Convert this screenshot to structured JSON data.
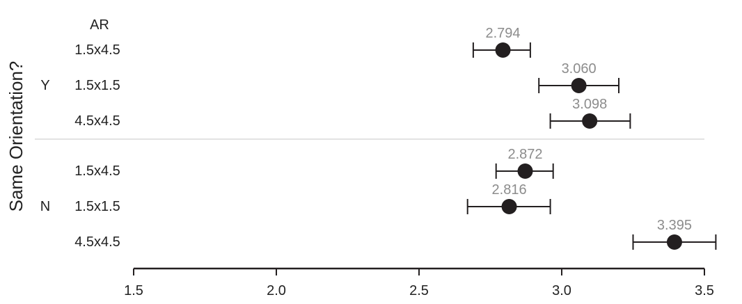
{
  "chart_data": {
    "type": "forest",
    "ylabel": "Same Orientation?",
    "row_header": "AR",
    "xlim": [
      1.5,
      3.5
    ],
    "xticks": [
      "1.5",
      "2.0",
      "2.5",
      "3.0",
      "3.5"
    ],
    "groups": [
      {
        "label": "Y",
        "rows": [
          {
            "ar": "1.5x4.5",
            "value": 2.794,
            "value_label": "2.794",
            "ci": [
              2.69,
              2.89
            ]
          },
          {
            "ar": "1.5x1.5",
            "value": 3.06,
            "value_label": "3.060",
            "ci": [
              2.92,
              3.2
            ]
          },
          {
            "ar": "4.5x4.5",
            "value": 3.098,
            "value_label": "3.098",
            "ci": [
              2.96,
              3.24
            ]
          }
        ]
      },
      {
        "label": "N",
        "rows": [
          {
            "ar": "1.5x4.5",
            "value": 2.872,
            "value_label": "2.872",
            "ci": [
              2.77,
              2.97
            ]
          },
          {
            "ar": "1.5x1.5",
            "value": 2.816,
            "value_label": "2.816",
            "ci": [
              2.67,
              2.96
            ]
          },
          {
            "ar": "4.5x4.5",
            "value": 3.395,
            "value_label": "3.395",
            "ci": [
              3.25,
              3.54
            ]
          }
        ]
      }
    ],
    "colors": {
      "point": "#231f20",
      "errorbar": "#231f20",
      "value_label": "#8c8c8c",
      "separator": "#d9d9d9",
      "axis": "#231f20"
    }
  }
}
